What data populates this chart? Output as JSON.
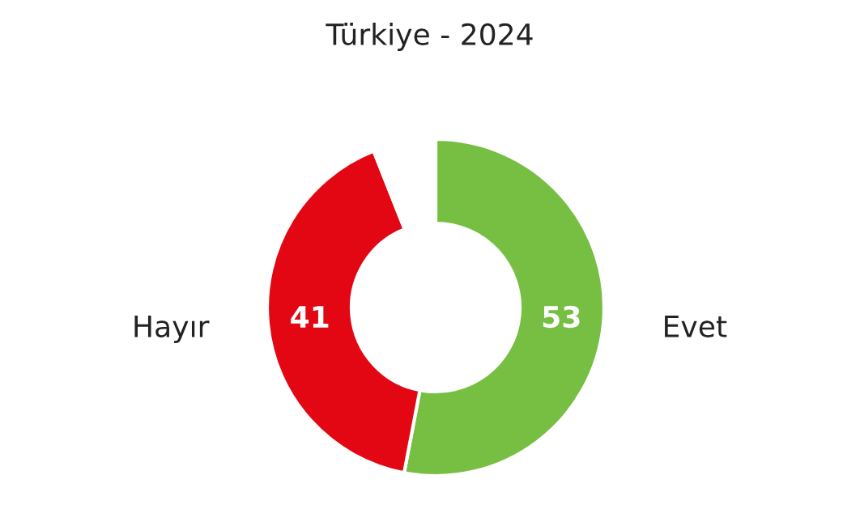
{
  "chart_data": {
    "type": "donut",
    "title": "Türkiye - 2024",
    "categories": [
      "Evet",
      "Hayır",
      null
    ],
    "values": [
      53,
      41,
      6
    ],
    "colors": [
      "#77bf43",
      "#e30613",
      "#ffffff"
    ],
    "value_labels": [
      "53",
      "41",
      null
    ],
    "legend": false
  }
}
